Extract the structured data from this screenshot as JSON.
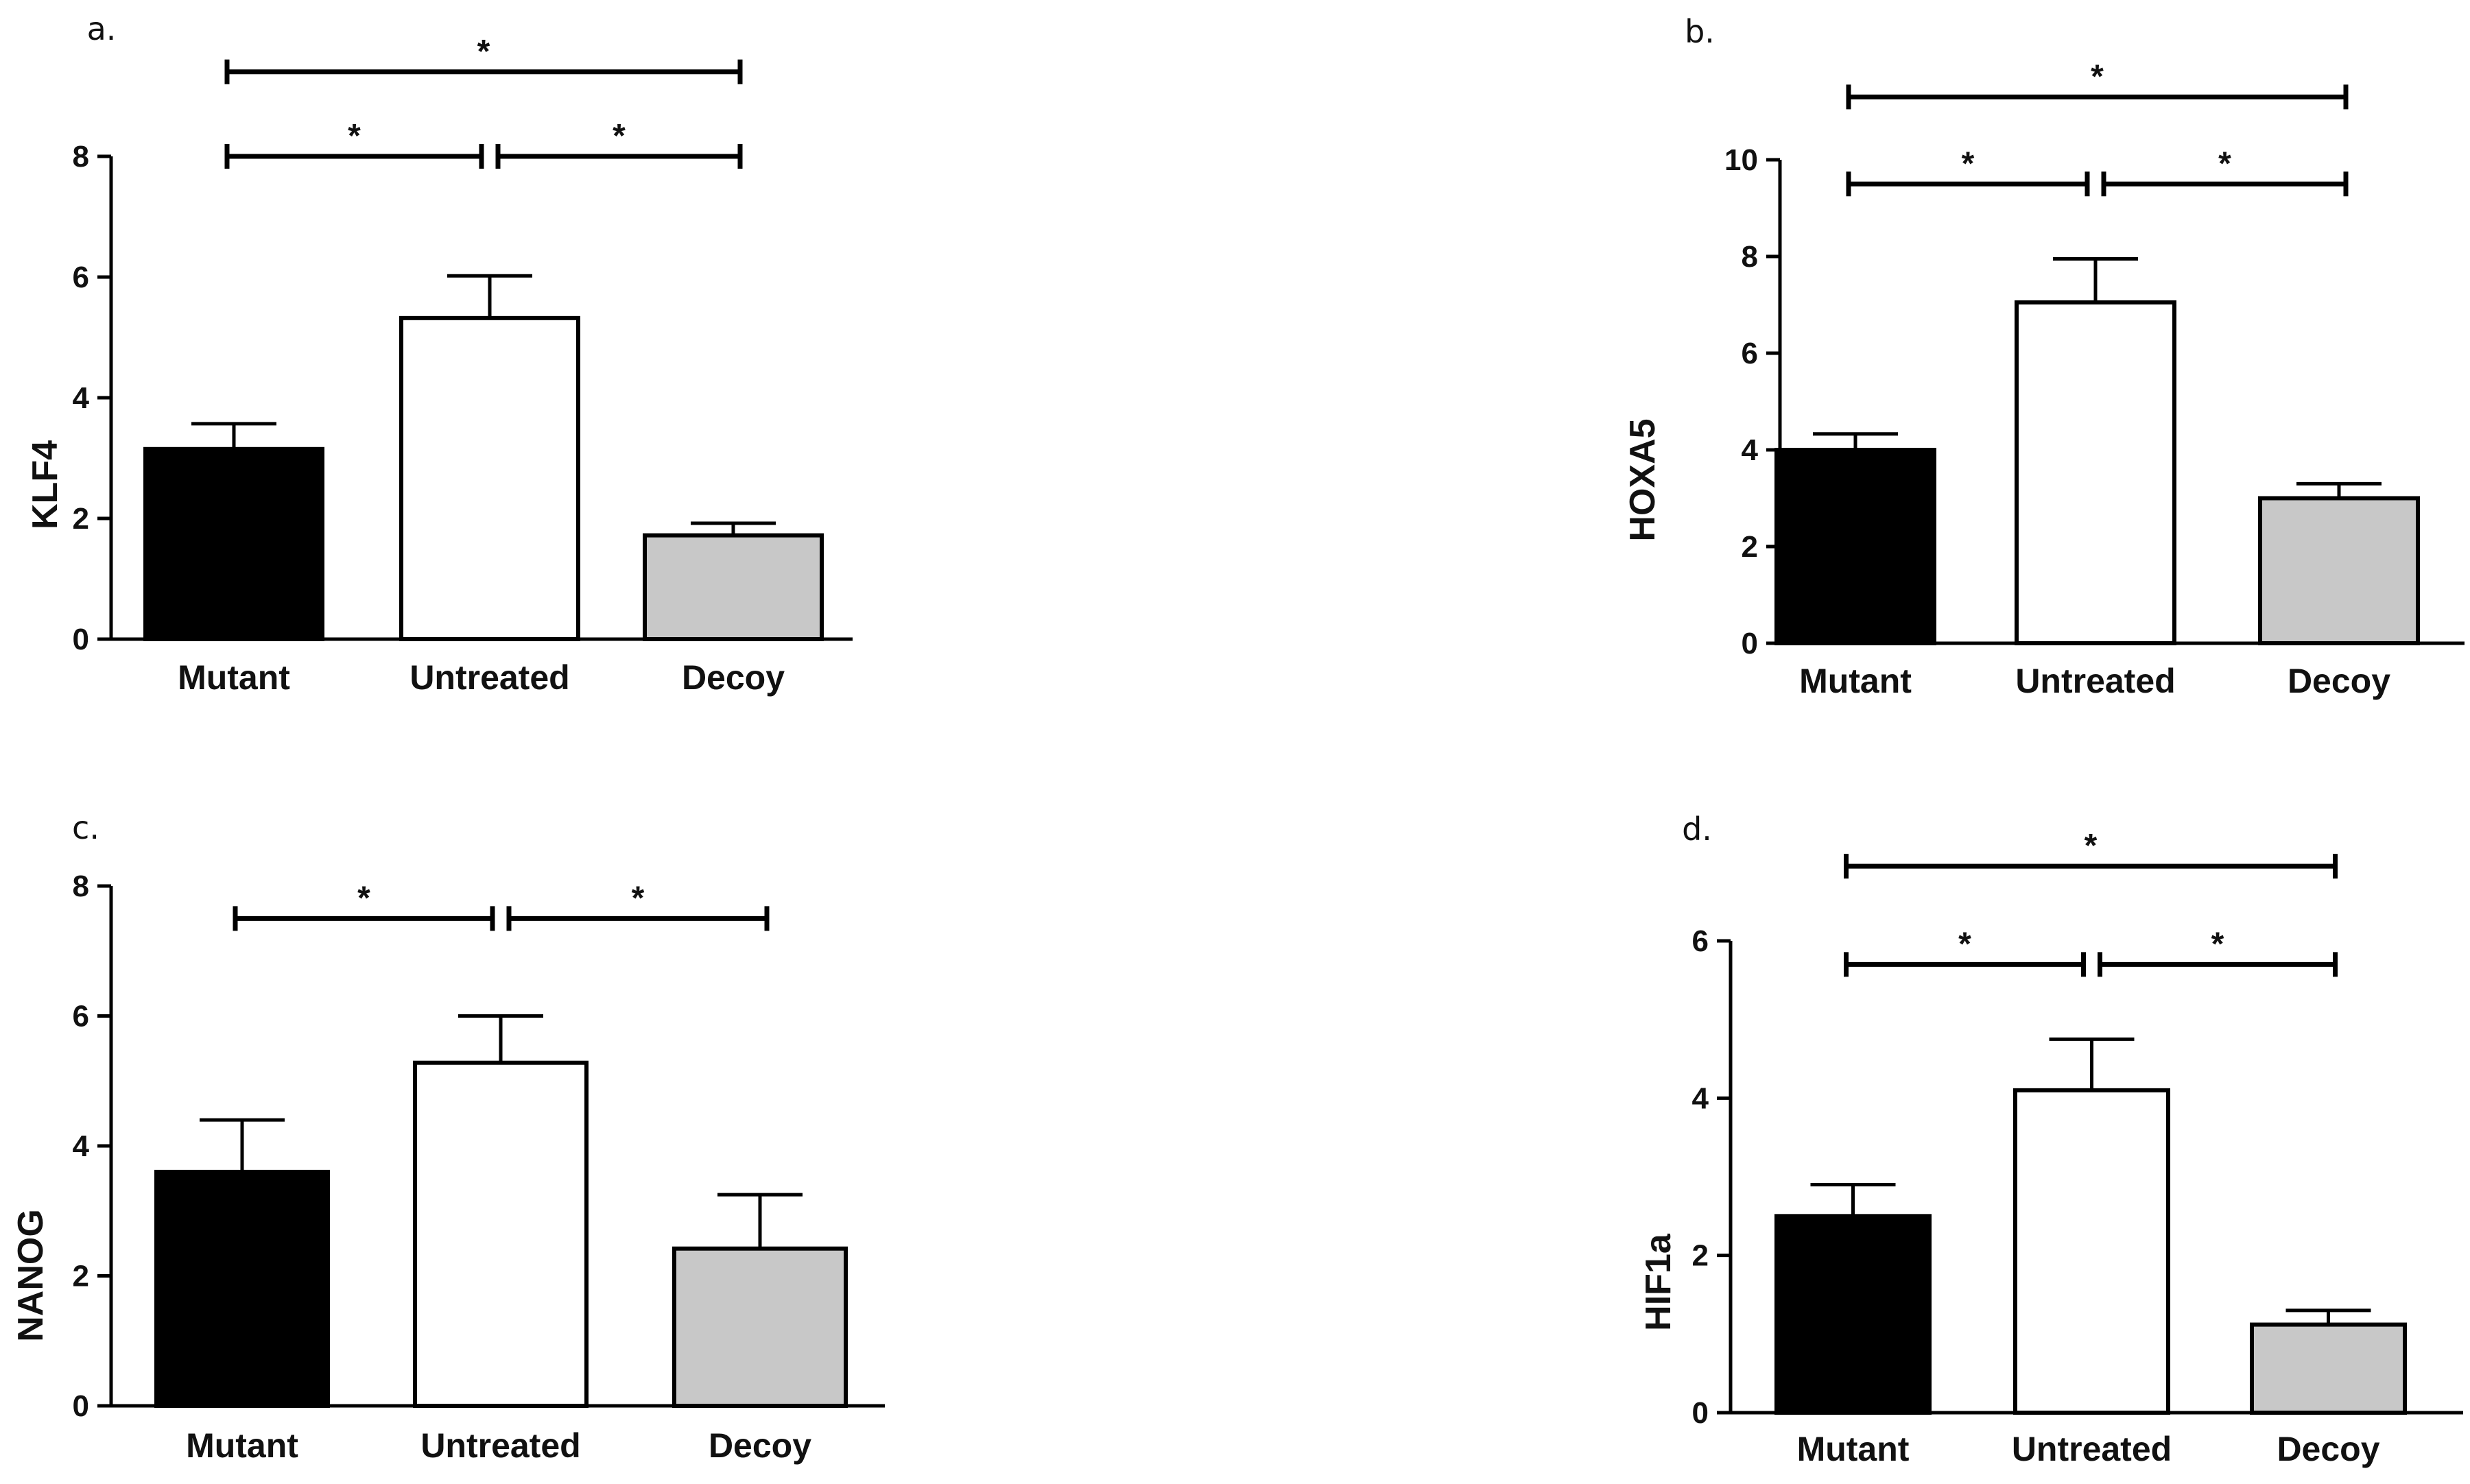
{
  "colors": {
    "Mutant": "#000000",
    "Untreated": "#ffffff",
    "Decoy": "#c8c8c8",
    "stroke": "#000000"
  },
  "chart_data": [
    {
      "type": "bar",
      "panel": "a.",
      "ylabel": "KLF4",
      "categories": [
        "Mutant",
        "Untreated",
        "Decoy"
      ],
      "values": [
        3.15,
        5.32,
        1.72
      ],
      "errors": [
        0.42,
        0.7,
        0.2
      ],
      "ylim": [
        0,
        8
      ],
      "yticks": [
        "0",
        "2",
        "4",
        "6",
        "8"
      ],
      "significance": [
        {
          "from": 0,
          "to": 1,
          "label": "*",
          "level": 8.0
        },
        {
          "from": 1,
          "to": 2,
          "label": "*",
          "level": 8.0
        },
        {
          "from": 0,
          "to": 2,
          "label": "*",
          "level": 9.4
        }
      ]
    },
    {
      "type": "bar",
      "panel": "b.",
      "ylabel": "HOXA5",
      "categories": [
        "Mutant",
        "Untreated",
        "Decoy"
      ],
      "values": [
        4.0,
        7.05,
        3.0
      ],
      "errors": [
        0.33,
        0.9,
        0.3
      ],
      "ylim": [
        0,
        10
      ],
      "yticks": [
        "0",
        "2",
        "4",
        "6",
        "8",
        "10"
      ],
      "significance": [
        {
          "from": 0,
          "to": 1,
          "label": "*",
          "level": 9.5
        },
        {
          "from": 1,
          "to": 2,
          "label": "*",
          "level": 9.5
        },
        {
          "from": 0,
          "to": 2,
          "label": "*",
          "level": 11.3
        }
      ]
    },
    {
      "type": "bar",
      "panel": "c.",
      "ylabel": "NANOG",
      "categories": [
        "Mutant",
        "Untreated",
        "Decoy"
      ],
      "values": [
        3.6,
        5.28,
        2.42
      ],
      "errors": [
        0.8,
        0.72,
        0.83
      ],
      "ylim": [
        0,
        8
      ],
      "yticks": [
        "0",
        "2",
        "4",
        "6",
        "8"
      ],
      "significance": [
        {
          "from": 0,
          "to": 1,
          "label": "*",
          "level": 7.5
        },
        {
          "from": 1,
          "to": 2,
          "label": "*",
          "level": 7.5
        }
      ]
    },
    {
      "type": "bar",
      "panel": "d.",
      "ylabel": "HIF1a",
      "categories": [
        "Mutant",
        "Untreated",
        "Decoy"
      ],
      "values": [
        2.5,
        4.1,
        1.12
      ],
      "errors": [
        0.4,
        0.65,
        0.18
      ],
      "ylim": [
        0,
        6
      ],
      "yticks": [
        "0",
        "2",
        "4",
        "6"
      ],
      "significance": [
        {
          "from": 0,
          "to": 1,
          "label": "*",
          "level": 5.7
        },
        {
          "from": 1,
          "to": 2,
          "label": "*",
          "level": 5.7
        },
        {
          "from": 0,
          "to": 2,
          "label": "*",
          "level": 6.95
        }
      ]
    }
  ]
}
